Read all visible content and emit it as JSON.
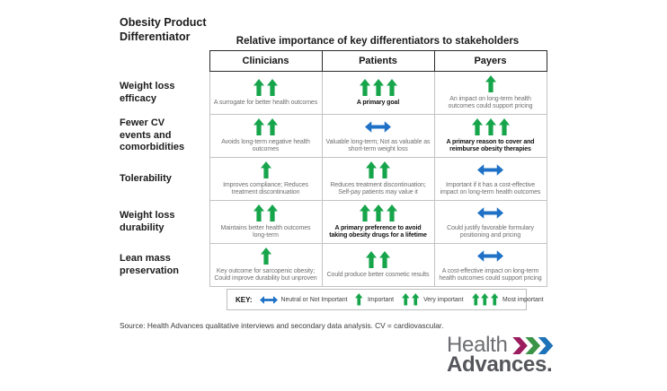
{
  "heading": {
    "line1": "Obesity Product",
    "line2": "Differentiator"
  },
  "table": {
    "title": "Relative importance of key differentiators to stakeholders",
    "columns": [
      "Clinicians",
      "Patients",
      "Payers"
    ]
  },
  "rows": [
    {
      "label": "Weight loss efficacy",
      "cells": [
        {
          "arrows": 2,
          "importance": "Very important",
          "bold": false,
          "text": "A surrogate for better health outcomes"
        },
        {
          "arrows": 3,
          "importance": "Most important",
          "bold": true,
          "text": "A primary goal"
        },
        {
          "arrows": 1,
          "importance": "Important",
          "bold": false,
          "text": "An impact on long-term health outcomes could support pricing"
        }
      ]
    },
    {
      "label": "Fewer CV events and comorbidities",
      "cells": [
        {
          "arrows": 2,
          "importance": "Very important",
          "bold": false,
          "text": "Avoids long-term negative health outcomes"
        },
        {
          "arrows": 0,
          "importance": "Neutral or Not Important",
          "bold": false,
          "text": "Valuable long-term; Not as valuable as short-term weight loss"
        },
        {
          "arrows": 3,
          "importance": "Most important",
          "bold": true,
          "text": "A primary reason to cover and reimburse obesity therapies"
        }
      ]
    },
    {
      "label": "Tolerability",
      "cells": [
        {
          "arrows": 1,
          "importance": "Important",
          "bold": false,
          "text": "Improves compliance; Reduces treatment discontinuation"
        },
        {
          "arrows": 2,
          "importance": "Very important",
          "bold": false,
          "text": "Reduces treatment discontinuation; Self-pay patients may value it"
        },
        {
          "arrows": 0,
          "importance": "Neutral or Not Important",
          "bold": false,
          "text": "Important if it has a cost-effective impact on long-term health outcomes"
        }
      ]
    },
    {
      "label": "Weight loss durability",
      "cells": [
        {
          "arrows": 2,
          "importance": "Very important",
          "bold": false,
          "text": "Maintains better health outcomes long-term"
        },
        {
          "arrows": 3,
          "importance": "Most important",
          "bold": true,
          "text": "A primary preference to avoid taking obesity drugs for a lifetime"
        },
        {
          "arrows": 0,
          "importance": "Neutral or Not Important",
          "bold": false,
          "text": "Could justify favorable formulary positioning and pricing"
        }
      ]
    },
    {
      "label": "Lean mass preservation",
      "cells": [
        {
          "arrows": 1,
          "importance": "Important",
          "bold": false,
          "text": "Key outcome for sarcopenic obesity; Could improve durability but unproven"
        },
        {
          "arrows": 2,
          "importance": "Very important",
          "bold": false,
          "text": "Could produce better cosmetic results"
        },
        {
          "arrows": 0,
          "importance": "Neutral or Not Important",
          "bold": false,
          "text": "A cost-effective impact on long-term health outcomes could support pricing"
        }
      ]
    }
  ],
  "key": {
    "label": "KEY:",
    "items": [
      {
        "arrows": 0,
        "text": "Neutral or Not Important"
      },
      {
        "arrows": 1,
        "text": "Important"
      },
      {
        "arrows": 2,
        "text": "Very important"
      },
      {
        "arrows": 3,
        "text": "Most important"
      }
    ]
  },
  "source": {
    "text": "Source: Health Advances qualitative interviews and secondary data analysis. CV = cardiovascular."
  },
  "logo": {
    "health": "Health",
    "advances": "Advances.",
    "chevron_colors": [
      "#9c1d5f",
      "#3a9447",
      "#1e72b8"
    ]
  },
  "colors": {
    "arrow_green": "#17a54b",
    "arrow_blue": "#1e71c6"
  },
  "chart_data": {
    "type": "table",
    "title": "Relative importance of key differentiators to stakeholders",
    "row_header": "Obesity Product Differentiator",
    "columns": [
      "Clinicians",
      "Patients",
      "Payers"
    ],
    "row_labels": [
      "Weight loss efficacy",
      "Fewer CV events and comorbidities",
      "Tolerability",
      "Weight loss durability",
      "Lean mass preservation"
    ],
    "rating_scale": {
      "0": "Neutral or Not Important",
      "1": "Important",
      "2": "Very important",
      "3": "Most important"
    },
    "ratings": [
      [
        2,
        3,
        1
      ],
      [
        2,
        0,
        3
      ],
      [
        1,
        2,
        0
      ],
      [
        2,
        3,
        0
      ],
      [
        1,
        2,
        0
      ]
    ],
    "legend_position": "bottom"
  }
}
